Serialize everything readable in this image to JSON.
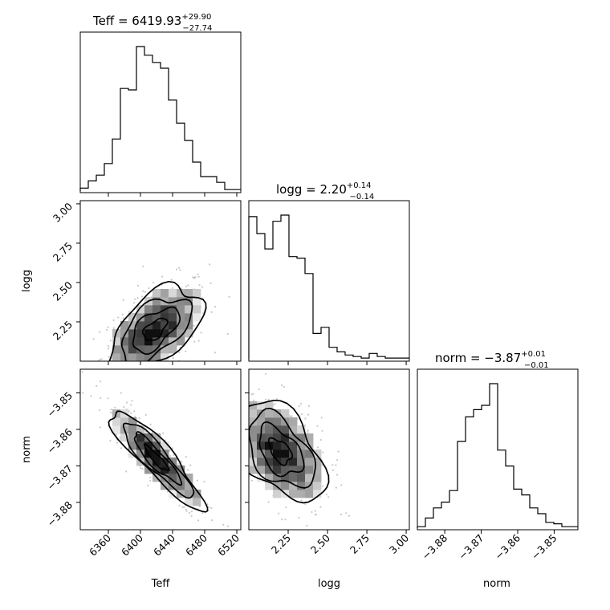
{
  "chart_data": {
    "type": "corner",
    "parameters": [
      "Teff",
      "logg",
      "norm"
    ],
    "titles": [
      {
        "param": "Teff",
        "text": "Teff = 6419.93",
        "plus": "+29.90",
        "minus": "−27.74"
      },
      {
        "param": "logg",
        "text": "logg = 2.20",
        "plus": "+0.14",
        "minus": "−0.14"
      },
      {
        "param": "norm",
        "text": "norm = −3.87",
        "plus": "+0.01",
        "minus": "−0.01"
      }
    ],
    "axes": {
      "Teff": {
        "lim": [
          6325,
          6525
        ],
        "ticks": [
          6360,
          6400,
          6440,
          6480,
          6520
        ],
        "ticklabels": [
          "6360",
          "6400",
          "6440",
          "6480",
          "6520"
        ]
      },
      "logg": {
        "lim": [
          2.0,
          3.02
        ],
        "ticks": [
          2.25,
          2.5,
          2.75,
          3.0
        ],
        "ticklabels": [
          "2.25",
          "2.50",
          "2.75",
          "3.00"
        ]
      },
      "norm": {
        "lim": [
          -3.8875,
          -3.8435
        ],
        "ticks": [
          -3.88,
          -3.87,
          -3.86,
          -3.85
        ],
        "ticklabels": [
          "−3.88",
          "−3.87",
          "−3.86",
          "−3.85"
        ]
      }
    },
    "histograms": {
      "Teff": {
        "edges": [
          6325,
          6335,
          6345,
          6355,
          6365,
          6375,
          6385,
          6395,
          6405,
          6415,
          6425,
          6435,
          6445,
          6455,
          6465,
          6475,
          6485,
          6495,
          6505,
          6515,
          6525
        ],
        "counts": [
          2,
          7,
          11,
          19,
          36,
          71,
          70,
          100,
          94,
          89,
          85,
          63,
          47,
          35,
          20,
          10,
          10,
          6,
          1,
          1
        ]
      },
      "logg": {
        "edges": [
          2.0,
          2.051,
          2.102,
          2.153,
          2.204,
          2.255,
          2.306,
          2.357,
          2.408,
          2.459,
          2.51,
          2.561,
          2.612,
          2.663,
          2.714,
          2.765,
          2.816,
          2.867,
          2.918,
          2.969,
          3.02
        ],
        "counts": [
          93,
          82,
          72,
          90,
          94,
          67,
          66,
          56,
          17,
          21,
          8,
          5,
          3,
          2,
          1,
          4,
          2,
          1,
          1,
          1
        ]
      },
      "norm": {
        "edges": [
          -3.8875,
          -3.8853,
          -3.8831,
          -3.8809,
          -3.8787,
          -3.8765,
          -3.8743,
          -3.8721,
          -3.8699,
          -3.8677,
          -3.8655,
          -3.8633,
          -3.8611,
          -3.8589,
          -3.8567,
          -3.8545,
          -3.8523,
          -3.8501,
          -3.8479,
          -3.8457,
          -3.8435
        ],
        "counts": [
          1,
          7,
          14,
          18,
          26,
          60,
          77,
          82,
          85,
          100,
          54,
          43,
          27,
          23,
          14,
          10,
          4,
          3,
          1,
          1
        ]
      }
    },
    "pairs": [
      {
        "x": "Teff",
        "y": "logg",
        "center": [
          6418,
          2.2
        ],
        "sd": [
          29,
          0.14
        ],
        "corr": 0.55
      },
      {
        "x": "Teff",
        "y": "norm",
        "center": [
          6420,
          -3.868
        ],
        "sd": [
          29,
          0.0068
        ],
        "corr": -0.9
      },
      {
        "x": "logg",
        "y": "norm",
        "center": [
          2.2,
          -3.866
        ],
        "sd": [
          0.14,
          0.0068
        ],
        "corr": -0.45
      }
    ],
    "contour_levels": [
      "0.5σ",
      "1σ",
      "1.5σ",
      "2σ"
    ]
  }
}
